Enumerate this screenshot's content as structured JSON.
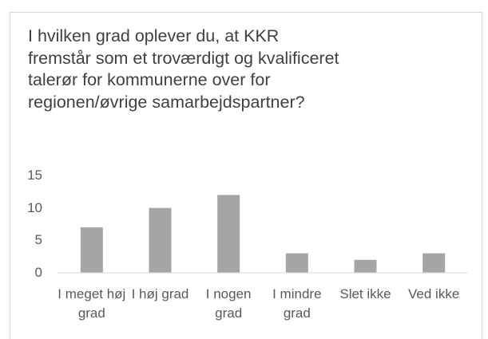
{
  "chart_data": {
    "type": "bar",
    "title": "I hvilken grad oplever du, at KKR fremstår som et troværdigt og kvalificeret talerør for kommunerne over for regionen/øvrige samarbejdspartner?",
    "categories": [
      "I meget høj grad",
      "I høj grad",
      "I nogen grad",
      "I mindre grad",
      "Slet ikke",
      "Ved ikke"
    ],
    "values": [
      7,
      10,
      12,
      3,
      2,
      3
    ],
    "color": "#a5a5a5",
    "ylim": [
      0,
      15
    ],
    "yticks": [
      0,
      5,
      10,
      15
    ],
    "grid": false
  }
}
